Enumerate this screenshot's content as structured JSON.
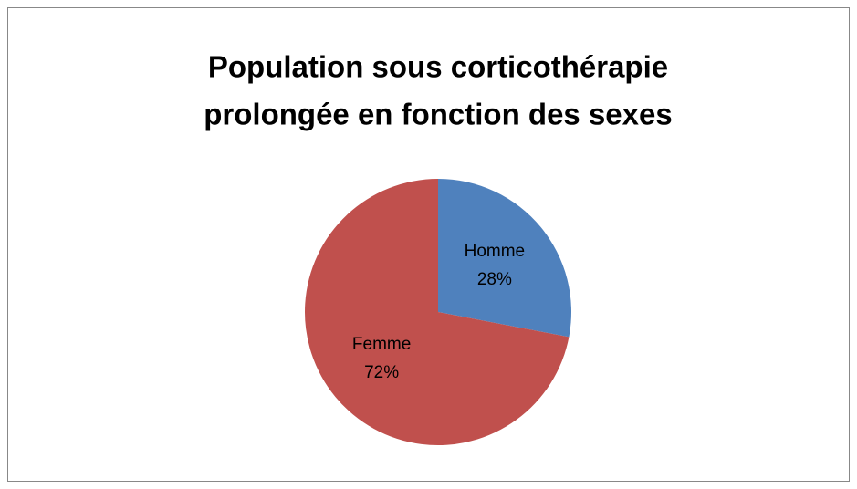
{
  "chart_data": {
    "type": "pie",
    "title": [
      "Population sous corticothérapie",
      "prolongée en fonction des sexes"
    ],
    "categories": [
      "Homme",
      "Femme"
    ],
    "values": [
      28,
      72
    ],
    "value_labels": [
      "28%",
      "72%"
    ],
    "colors": [
      "#4f81bd",
      "#c0504d"
    ]
  }
}
